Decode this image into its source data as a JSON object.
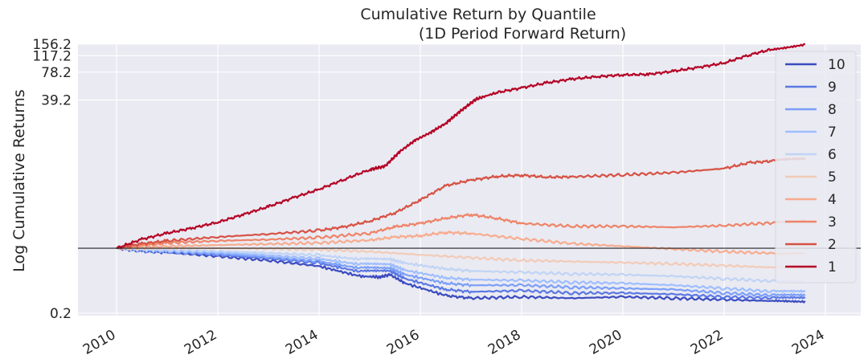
{
  "chart_data": {
    "type": "line",
    "title": "Cumulative Return by Quantile",
    "subtitle": "(1D Period Forward Return)",
    "xlabel": "",
    "ylabel": "Log Cumulative Returns",
    "yscale": "log",
    "xlim": [
      2010.0,
      2024.0
    ],
    "ylim": [
      0.2,
      156.2
    ],
    "xticks": [
      2010,
      2012,
      2014,
      2016,
      2018,
      2020,
      2022,
      2024
    ],
    "xtick_labels": [
      "2010",
      "2012",
      "2014",
      "2016",
      "2018",
      "2020",
      "2022",
      "2024"
    ],
    "yticks": [
      0.2,
      39.2,
      78.2,
      117.2,
      156.2
    ],
    "ytick_labels": [
      "0.2",
      "39.2",
      "78.2",
      "117.2",
      "156.2"
    ],
    "reference_line": 1.0,
    "grid": true,
    "legend_position": "right",
    "series": [
      {
        "name": "10",
        "color": "#3b4cc0",
        "points": [
          [
            2010.0,
            1.0
          ],
          [
            2010.5,
            0.93
          ],
          [
            2011.0,
            0.9
          ],
          [
            2012.0,
            0.82
          ],
          [
            2013.0,
            0.74
          ],
          [
            2014.0,
            0.64
          ],
          [
            2014.8,
            0.5
          ],
          [
            2015.2,
            0.49
          ],
          [
            2015.4,
            0.52
          ],
          [
            2015.7,
            0.42
          ],
          [
            2016.5,
            0.31
          ],
          [
            2017.0,
            0.29
          ],
          [
            2018.0,
            0.3
          ],
          [
            2019.0,
            0.29
          ],
          [
            2020.0,
            0.3
          ],
          [
            2021.0,
            0.29
          ],
          [
            2022.0,
            0.28
          ],
          [
            2023.0,
            0.27
          ],
          [
            2023.6,
            0.27
          ]
        ]
      },
      {
        "name": "9",
        "color": "#5a78e4",
        "points": [
          [
            2010.0,
            1.0
          ],
          [
            2010.5,
            0.94
          ],
          [
            2011.0,
            0.91
          ],
          [
            2012.0,
            0.85
          ],
          [
            2013.0,
            0.78
          ],
          [
            2014.0,
            0.69
          ],
          [
            2014.8,
            0.56
          ],
          [
            2015.4,
            0.57
          ],
          [
            2015.7,
            0.47
          ],
          [
            2016.5,
            0.36
          ],
          [
            2017.0,
            0.34
          ],
          [
            2018.0,
            0.35
          ],
          [
            2019.0,
            0.33
          ],
          [
            2020.0,
            0.33
          ],
          [
            2021.0,
            0.32
          ],
          [
            2022.0,
            0.3
          ],
          [
            2023.0,
            0.29
          ],
          [
            2023.6,
            0.29
          ]
        ]
      },
      {
        "name": "8",
        "color": "#7b9ff9",
        "points": [
          [
            2010.0,
            1.0
          ],
          [
            2010.5,
            0.95
          ],
          [
            2011.0,
            0.92
          ],
          [
            2012.0,
            0.87
          ],
          [
            2013.0,
            0.8
          ],
          [
            2014.0,
            0.72
          ],
          [
            2014.8,
            0.61
          ],
          [
            2015.4,
            0.61
          ],
          [
            2015.7,
            0.52
          ],
          [
            2016.5,
            0.42
          ],
          [
            2017.0,
            0.4
          ],
          [
            2018.0,
            0.4
          ],
          [
            2019.0,
            0.38
          ],
          [
            2020.0,
            0.37
          ],
          [
            2021.0,
            0.36
          ],
          [
            2022.0,
            0.33
          ],
          [
            2023.0,
            0.31
          ],
          [
            2023.6,
            0.31
          ]
        ]
      },
      {
        "name": "7",
        "color": "#9ebeff",
        "points": [
          [
            2010.0,
            1.0
          ],
          [
            2010.5,
            0.96
          ],
          [
            2011.0,
            0.94
          ],
          [
            2012.0,
            0.9
          ],
          [
            2013.0,
            0.84
          ],
          [
            2014.0,
            0.77
          ],
          [
            2014.8,
            0.67
          ],
          [
            2015.4,
            0.67
          ],
          [
            2015.7,
            0.58
          ],
          [
            2016.5,
            0.48
          ],
          [
            2017.0,
            0.46
          ],
          [
            2018.0,
            0.45
          ],
          [
            2019.0,
            0.43
          ],
          [
            2020.0,
            0.42
          ],
          [
            2021.0,
            0.4
          ],
          [
            2022.0,
            0.37
          ],
          [
            2023.0,
            0.34
          ],
          [
            2023.6,
            0.34
          ]
        ]
      },
      {
        "name": "6",
        "color": "#c0d4f5",
        "points": [
          [
            2010.0,
            1.0
          ],
          [
            2010.5,
            0.97
          ],
          [
            2011.0,
            0.96
          ],
          [
            2012.0,
            0.93
          ],
          [
            2013.0,
            0.89
          ],
          [
            2014.0,
            0.84
          ],
          [
            2014.8,
            0.76
          ],
          [
            2015.4,
            0.76
          ],
          [
            2015.7,
            0.69
          ],
          [
            2016.5,
            0.6
          ],
          [
            2017.0,
            0.57
          ],
          [
            2018.0,
            0.55
          ],
          [
            2019.0,
            0.53
          ],
          [
            2020.0,
            0.52
          ],
          [
            2021.0,
            0.5
          ],
          [
            2022.0,
            0.47
          ],
          [
            2023.0,
            0.44
          ],
          [
            2023.6,
            0.43
          ]
        ]
      },
      {
        "name": "5",
        "color": "#f2cbb7",
        "points": [
          [
            2010.0,
            1.0
          ],
          [
            2011.0,
            1.0
          ],
          [
            2012.0,
            1.0
          ],
          [
            2013.0,
            0.99
          ],
          [
            2014.0,
            0.97
          ],
          [
            2015.0,
            0.92
          ],
          [
            2016.0,
            0.85
          ],
          [
            2017.0,
            0.79
          ],
          [
            2018.0,
            0.74
          ],
          [
            2019.0,
            0.72
          ],
          [
            2020.0,
            0.7
          ],
          [
            2021.0,
            0.68
          ],
          [
            2022.0,
            0.65
          ],
          [
            2023.0,
            0.62
          ],
          [
            2023.6,
            0.61
          ]
        ]
      },
      {
        "name": "4",
        "color": "#f7ac8e",
        "points": [
          [
            2010.0,
            1.0
          ],
          [
            2011.0,
            1.05
          ],
          [
            2012.0,
            1.08
          ],
          [
            2013.0,
            1.11
          ],
          [
            2014.0,
            1.14
          ],
          [
            2015.0,
            1.22
          ],
          [
            2015.5,
            1.32
          ],
          [
            2016.0,
            1.36
          ],
          [
            2016.5,
            1.48
          ],
          [
            2017.0,
            1.44
          ],
          [
            2018.0,
            1.26
          ],
          [
            2019.0,
            1.12
          ],
          [
            2020.0,
            1.05
          ],
          [
            2021.0,
            0.98
          ],
          [
            2022.0,
            0.92
          ],
          [
            2023.0,
            0.88
          ],
          [
            2023.6,
            0.87
          ]
        ]
      },
      {
        "name": "3",
        "color": "#ee8468",
        "points": [
          [
            2010.0,
            1.0
          ],
          [
            2010.5,
            1.07
          ],
          [
            2011.0,
            1.14
          ],
          [
            2012.0,
            1.2
          ],
          [
            2013.0,
            1.24
          ],
          [
            2014.0,
            1.3
          ],
          [
            2015.0,
            1.45
          ],
          [
            2015.5,
            1.7
          ],
          [
            2016.0,
            1.85
          ],
          [
            2016.5,
            2.1
          ],
          [
            2017.0,
            2.3
          ],
          [
            2017.5,
            2.1
          ],
          [
            2018.0,
            1.85
          ],
          [
            2019.0,
            1.72
          ],
          [
            2020.0,
            1.72
          ],
          [
            2021.0,
            1.68
          ],
          [
            2022.0,
            1.75
          ],
          [
            2023.0,
            1.88
          ],
          [
            2023.6,
            2.0
          ]
        ]
      },
      {
        "name": "2",
        "color": "#d65244",
        "points": [
          [
            2010.0,
            1.0
          ],
          [
            2010.5,
            1.12
          ],
          [
            2011.0,
            1.2
          ],
          [
            2012.0,
            1.32
          ],
          [
            2013.0,
            1.42
          ],
          [
            2014.0,
            1.55
          ],
          [
            2014.5,
            1.7
          ],
          [
            2015.0,
            1.95
          ],
          [
            2015.5,
            2.4
          ],
          [
            2016.0,
            3.3
          ],
          [
            2016.5,
            4.7
          ],
          [
            2017.0,
            5.4
          ],
          [
            2017.5,
            5.9
          ],
          [
            2018.0,
            6.1
          ],
          [
            2018.5,
            5.8
          ],
          [
            2019.0,
            5.85
          ],
          [
            2020.0,
            6.15
          ],
          [
            2021.0,
            6.5
          ],
          [
            2022.0,
            7.2
          ],
          [
            2022.5,
            8.3
          ],
          [
            2023.0,
            8.7
          ],
          [
            2023.6,
            9.2
          ]
        ]
      },
      {
        "name": "1",
        "color": "#b40426",
        "points": [
          [
            2010.0,
            1.0
          ],
          [
            2010.5,
            1.25
          ],
          [
            2011.0,
            1.45
          ],
          [
            2011.5,
            1.65
          ],
          [
            2012.0,
            1.9
          ],
          [
            2012.5,
            2.3
          ],
          [
            2013.0,
            2.8
          ],
          [
            2013.5,
            3.5
          ],
          [
            2014.0,
            4.3
          ],
          [
            2014.5,
            5.5
          ],
          [
            2015.0,
            7.0
          ],
          [
            2015.3,
            7.6
          ],
          [
            2015.6,
            11.0
          ],
          [
            2015.9,
            14.5
          ],
          [
            2016.2,
            17.5
          ],
          [
            2016.5,
            22.0
          ],
          [
            2016.8,
            30.0
          ],
          [
            2017.1,
            40.0
          ],
          [
            2017.5,
            47.0
          ],
          [
            2018.0,
            53.0
          ],
          [
            2018.5,
            60.0
          ],
          [
            2019.0,
            66.0
          ],
          [
            2019.5,
            70.0
          ],
          [
            2020.0,
            73.0
          ],
          [
            2020.5,
            74.0
          ],
          [
            2021.0,
            80.0
          ],
          [
            2021.5,
            88.0
          ],
          [
            2022.0,
            98.0
          ],
          [
            2022.5,
            120.0
          ],
          [
            2023.0,
            140.0
          ],
          [
            2023.6,
            156.2
          ]
        ]
      }
    ]
  }
}
